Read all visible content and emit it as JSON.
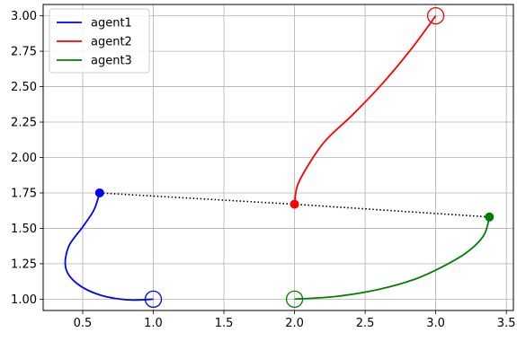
{
  "chart_data": {
    "type": "line",
    "title": "",
    "xlabel": "",
    "ylabel": "",
    "xlim": [
      0.22,
      3.55
    ],
    "ylim": [
      0.92,
      3.08
    ],
    "grid": true,
    "legend_position": "top-left",
    "x_ticks": [
      0.5,
      1.0,
      1.5,
      2.0,
      2.5,
      3.0,
      3.5
    ],
    "x_tick_labels": [
      "0.5",
      "1.0",
      "1.5",
      "2.0",
      "2.5",
      "3.0",
      "3.5"
    ],
    "y_ticks": [
      1.0,
      1.25,
      1.5,
      1.75,
      2.0,
      2.25,
      2.5,
      2.75,
      3.0
    ],
    "y_tick_labels": [
      "1.00",
      "1.25",
      "1.50",
      "1.75",
      "2.00",
      "2.25",
      "2.50",
      "2.75",
      "3.00"
    ],
    "series": [
      {
        "name": "agent1",
        "color": "#0000ff",
        "x": [
          1.0,
          0.82,
          0.62,
          0.46,
          0.38,
          0.4,
          0.5,
          0.58,
          0.62
        ],
        "y": [
          1.0,
          0.995,
          1.03,
          1.11,
          1.22,
          1.37,
          1.51,
          1.63,
          1.75
        ],
        "start": [
          1.0,
          1.0
        ],
        "end": [
          0.62,
          1.75
        ]
      },
      {
        "name": "agent2",
        "color": "#ff0000",
        "x": [
          3.0,
          2.83,
          2.63,
          2.42,
          2.22,
          2.1,
          2.02,
          2.0
        ],
        "y": [
          3.0,
          2.77,
          2.53,
          2.31,
          2.12,
          1.95,
          1.8,
          1.67
        ],
        "start": [
          3.0,
          3.0
        ],
        "end": [
          2.0,
          1.67
        ]
      },
      {
        "name": "agent3",
        "color": "#008000",
        "x": [
          2.0,
          2.3,
          2.6,
          2.85,
          3.05,
          3.22,
          3.34,
          3.38
        ],
        "y": [
          1.0,
          1.02,
          1.07,
          1.14,
          1.23,
          1.33,
          1.45,
          1.58
        ],
        "start": [
          2.0,
          1.0
        ],
        "end": [
          3.38,
          1.58
        ]
      }
    ],
    "connector": {
      "style": "dotted",
      "color": "#000000",
      "x": [
        0.62,
        2.0,
        3.38
      ],
      "y": [
        1.75,
        1.67,
        1.58
      ]
    }
  }
}
